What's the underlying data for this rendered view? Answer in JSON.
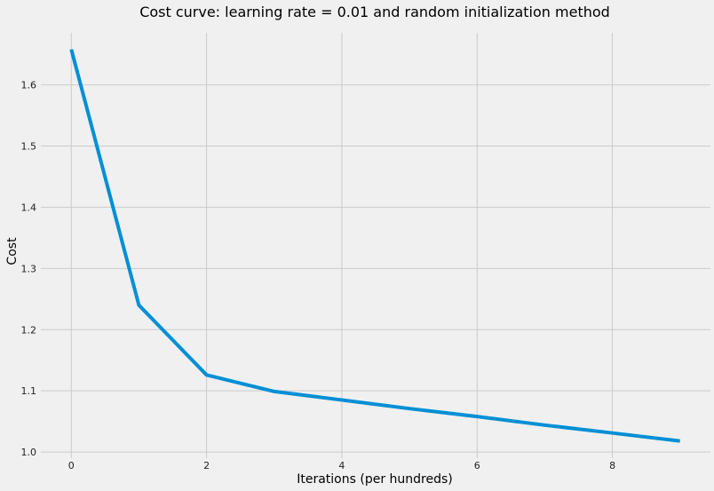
{
  "chart_data": {
    "type": "line",
    "title": "Cost curve: learning rate = 0.01 and random initialization method",
    "xlabel": "Iterations (per hundreds)",
    "ylabel": "Cost",
    "xlim": [
      -0.45,
      9.45
    ],
    "ylim": [
      0.99,
      1.685
    ],
    "x_ticks": [
      0,
      2,
      4,
      6,
      8
    ],
    "x_tick_labels": [
      "0",
      "2",
      "4",
      "6",
      "8"
    ],
    "y_ticks": [
      1.0,
      1.1,
      1.2,
      1.3,
      1.4,
      1.5,
      1.6
    ],
    "y_tick_labels": [
      "1.0",
      "1.1",
      "1.2",
      "1.3",
      "1.4",
      "1.5",
      "1.6"
    ],
    "grid": true,
    "line_color": "#008fd5",
    "background_color": "#f0f0f0",
    "grid_color": "#cbcbcb",
    "series": [
      {
        "x": [
          0,
          1,
          2,
          3,
          4,
          5,
          6,
          7,
          8,
          9
        ],
        "y": [
          1.658,
          1.24,
          1.126,
          1.099,
          1.085,
          1.071,
          1.058,
          1.044,
          1.031,
          1.018
        ]
      }
    ]
  }
}
